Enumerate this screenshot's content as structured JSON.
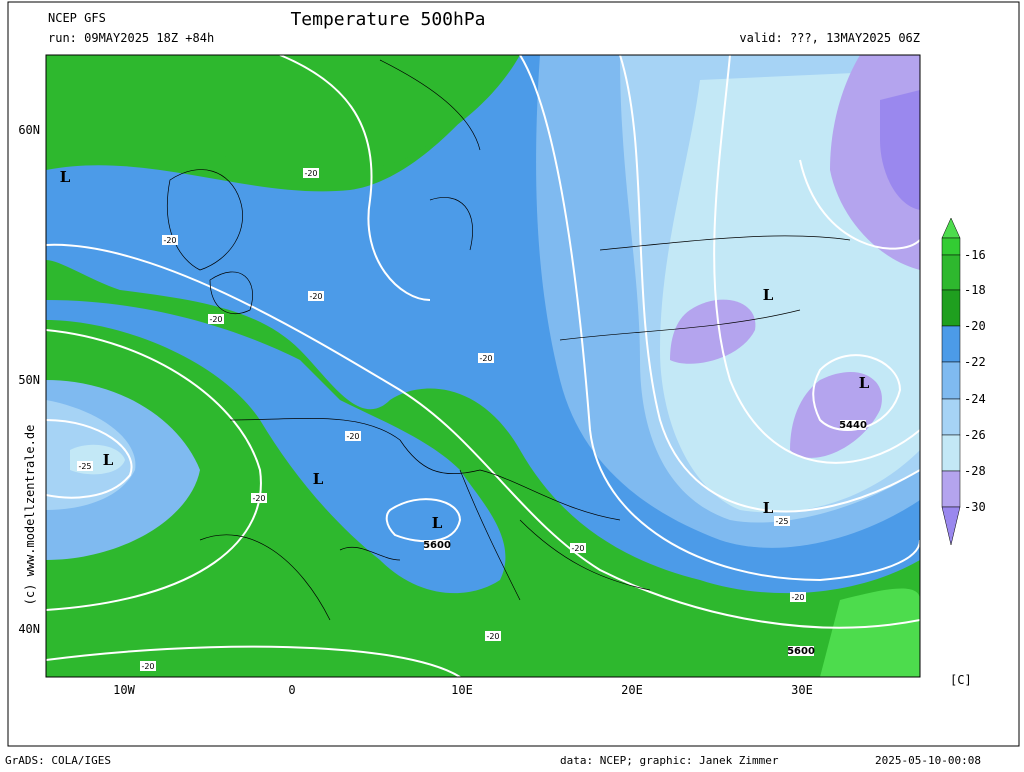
{
  "header": {
    "model": "NCEP GFS",
    "run": "run: 09MAY2025 18Z +84h",
    "title": "Temperature 500hPa",
    "valid": "valid: ???, 13MAY2025 06Z"
  },
  "map": {
    "lat_labels": [
      "60N",
      "50N",
      "40N"
    ],
    "lon_labels": [
      "10W",
      "0",
      "10E",
      "20E",
      "30E"
    ],
    "lows": [
      "L",
      "L",
      "L",
      "L",
      "L",
      "L",
      "L"
    ],
    "contour_labels": [
      "-20",
      "-20",
      "-20",
      "-20",
      "-20",
      "-20",
      "-20",
      "-20",
      "-20",
      "-20",
      "-20",
      "-25",
      "-25",
      "5440",
      "5600",
      "5600"
    ],
    "copyright": "(c) www.modellzentrale.de"
  },
  "colorbar": {
    "labels": [
      "-16",
      "-18",
      "-20",
      "-22",
      "-24",
      "-26",
      "-28",
      "-30"
    ],
    "unit": "[C]"
  },
  "footer": {
    "software": "GrADS: COLA/IGES",
    "credit": "data: NCEP; graphic: Janek Zimmer",
    "timestamp": "2025-05-10-00:08"
  }
}
